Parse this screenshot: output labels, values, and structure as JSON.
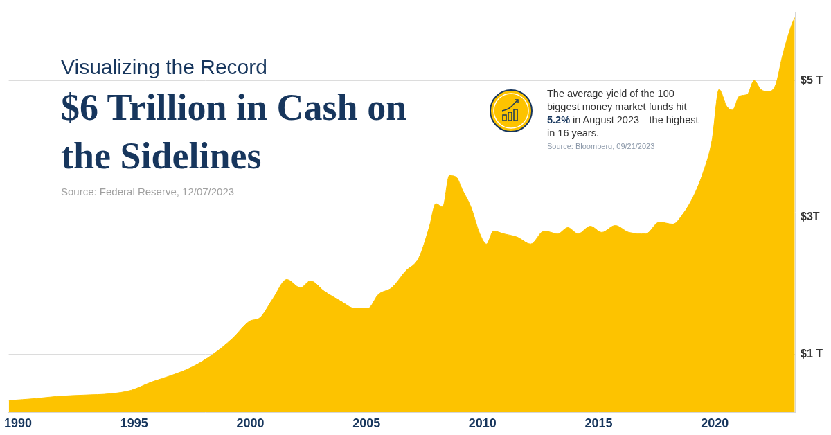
{
  "chart_data": {
    "type": "area",
    "subtitle": "Visualizing the Record",
    "title": "$6 Trillion in Cash on the Sidelines",
    "source": "Source: Federal Reserve, 12/07/2023",
    "annotation": {
      "parts": [
        "The average yield of the 100 biggest money market funds hit ",
        "5.2%",
        " in August 2023—the highest in 16 years."
      ],
      "source": "Source: Bloomberg, 09/21/2023"
    },
    "x": [
      1989.6,
      1990.79,
      1991.66,
      1992.83,
      1993.99,
      1994.87,
      1995.74,
      1996.62,
      1997.49,
      1998.37,
      1999.24,
      1999.97,
      2000.41,
      2000.99,
      2001.57,
      2002.16,
      2002.59,
      2003.18,
      2003.91,
      2004.49,
      2005.07,
      2005.51,
      2006.09,
      2006.68,
      2007.26,
      2007.7,
      2007.99,
      2008.28,
      2008.57,
      2008.86,
      2009.15,
      2009.5,
      2009.88,
      2010.17,
      2010.47,
      2010.9,
      2011.49,
      2012.07,
      2012.65,
      2013.24,
      2013.67,
      2014.11,
      2014.64,
      2015.13,
      2015.71,
      2016.3,
      2017.03,
      2017.61,
      2018.19,
      2018.63,
      2019.07,
      2019.5,
      2019.88,
      2020.18,
      2020.52,
      2020.76,
      2021.05,
      2021.4,
      2021.69,
      2021.98,
      2022.27,
      2022.62,
      2022.91,
      2023.29,
      2023.44
    ],
    "values": [
      0.32,
      0.35,
      0.38,
      0.4,
      0.42,
      0.47,
      0.59,
      0.69,
      0.81,
      0.99,
      1.23,
      1.48,
      1.53,
      1.82,
      2.09,
      1.97,
      2.07,
      1.92,
      1.77,
      1.67,
      1.67,
      1.87,
      1.97,
      2.21,
      2.41,
      2.85,
      3.2,
      3.15,
      3.61,
      3.59,
      3.39,
      3.15,
      2.76,
      2.61,
      2.8,
      2.76,
      2.71,
      2.61,
      2.8,
      2.76,
      2.85,
      2.76,
      2.87,
      2.78,
      2.88,
      2.78,
      2.76,
      2.93,
      2.9,
      3.05,
      3.3,
      3.66,
      4.13,
      4.87,
      4.62,
      4.57,
      4.77,
      4.8,
      5.0,
      4.87,
      4.84,
      4.94,
      5.36,
      5.8,
      5.92
    ],
    "color": "#fdc300",
    "xlim": [
      1989.6,
      2023.45
    ],
    "xticks": [
      1990,
      1995,
      2000,
      2005,
      2010,
      2015,
      2020
    ],
    "ylim": [
      0.15,
      6.0
    ],
    "yticks": [
      {
        "value": 1,
        "label": "$1 T"
      },
      {
        "value": 3,
        "label": "$3T"
      },
      {
        "value": 5,
        "label": "$5 T"
      }
    ],
    "grid": true
  }
}
